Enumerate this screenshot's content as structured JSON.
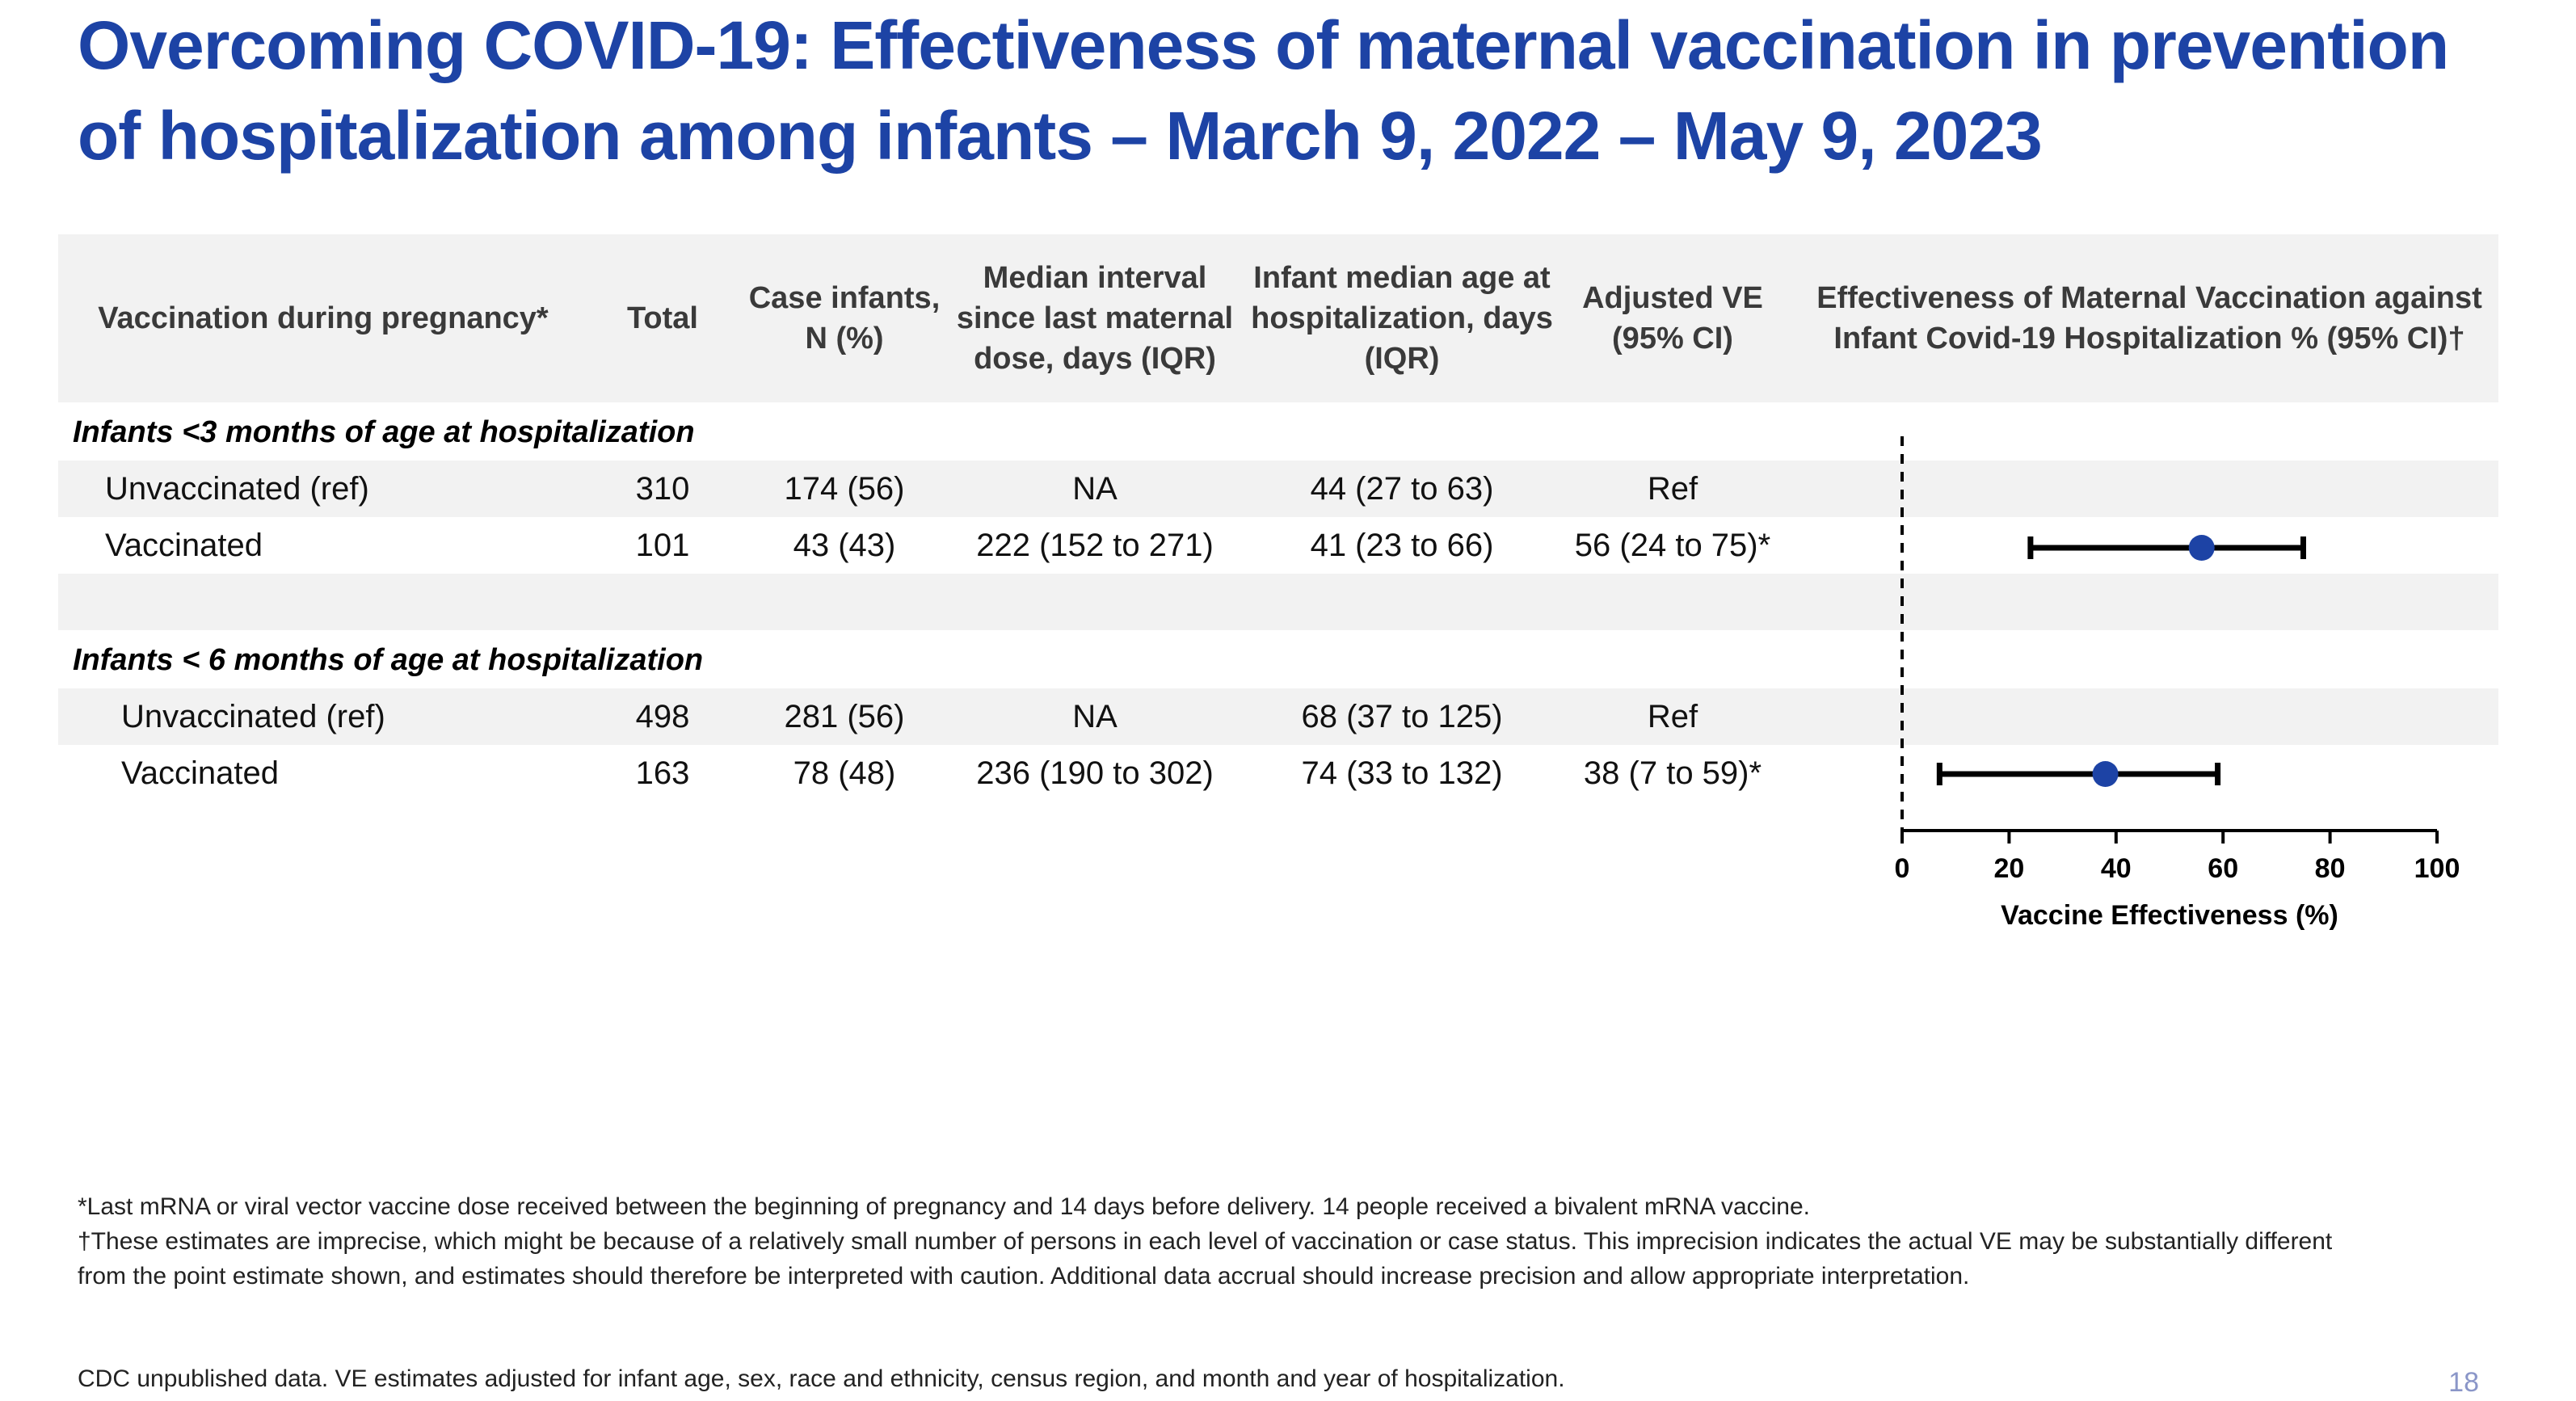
{
  "title": "Overcoming COVID-19: Effectiveness of maternal vaccination in prevention of hospitalization among infants – March 9, 2022 – May 9, 2023",
  "table": {
    "headers": {
      "vaccination": "Vaccination  during pregnancy*",
      "total": "Total",
      "case_infants": "Case infants, N (%)",
      "median_interval": "Median interval since last maternal dose, days (IQR)",
      "infant_age": "Infant median age at hospitalization, days (IQR)",
      "adjusted_ve": "Adjusted VE (95% CI)",
      "effectiveness": "Effectiveness of Maternal Vaccination  against Infant Covid-19 Hospitalization % (95% CI)†"
    },
    "groups": [
      {
        "label": "Infants <3 months of age at hospitalization",
        "rows": [
          {
            "label": "Unvaccinated (ref)",
            "total": "310",
            "cases": "174 (56)",
            "interval": "NA",
            "age": "44 (27 to 63)",
            "ve": "Ref"
          },
          {
            "label": "Vaccinated",
            "total": "101",
            "cases": "43 (43)",
            "interval": "222 (152 to 271)",
            "age": "41 (23 to 66)",
            "ve": "56 (24 to 75)*"
          }
        ]
      },
      {
        "label": "Infants < 6 months of age at hospitalization",
        "rows": [
          {
            "label": "Unvaccinated (ref)",
            "total": "498",
            "cases": "281 (56)",
            "interval": "NA",
            "age": "68 (37 to 125)",
            "ve": "Ref"
          },
          {
            "label": "Vaccinated",
            "total": "163",
            "cases": "78 (48)",
            "interval": "236 (190 to 302)",
            "age": "74 (33 to 132)",
            "ve": "38 (7 to 59)*"
          }
        ]
      }
    ]
  },
  "chart_data": {
    "type": "scatter",
    "subtype": "forest-plot",
    "xlabel": "Vaccine Effectiveness (%)",
    "xlim": [
      0,
      100
    ],
    "xticks": [
      0,
      20,
      40,
      60,
      80,
      100
    ],
    "reference_line": 0,
    "point_color": "#1d43a5",
    "series": [
      {
        "name": "Infants <3 months of age at hospitalization",
        "estimate": 56,
        "lower": 24,
        "upper": 75
      },
      {
        "name": "Infants < 6 months of age at hospitalization",
        "estimate": 38,
        "lower": 7,
        "upper": 59
      }
    ]
  },
  "footnotes": [
    "*Last mRNA or viral vector vaccine dose received between the beginning of pregnancy and 14 days before delivery. 14 people received a bivalent mRNA vaccine.",
    "†These estimates are imprecise, which might be because of a relatively small number of persons in each level of vaccination or case status. This imprecision indicates the actual VE may be substantially different from the point estimate shown, and estimates should therefore be interpreted with caution. Additional data accrual should increase precision and allow appropriate interpretation."
  ],
  "source": "CDC unpublished data. VE estimates adjusted for infant age, sex, race and ethnicity, census region, and month and year of hospitalization.",
  "page_number": "18"
}
